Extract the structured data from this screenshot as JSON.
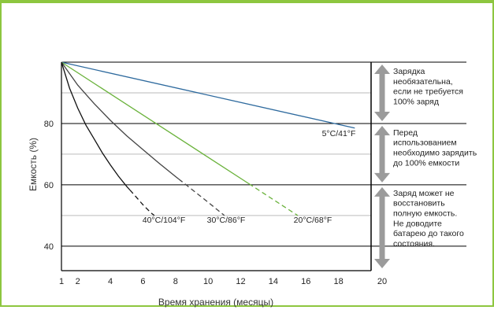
{
  "chart_data": {
    "type": "line",
    "xlabel": "Время хранения (месяцы)",
    "ylabel": "Емкость (%)",
    "xlim": [
      1,
      20
    ],
    "ylim": [
      32,
      100
    ],
    "x_ticks": [
      1,
      2,
      4,
      6,
      8,
      10,
      12,
      14,
      16,
      18,
      20
    ],
    "y_ticks": [
      40,
      60,
      80
    ],
    "grid_y": [
      40,
      50,
      60,
      70,
      80,
      90,
      100
    ],
    "colors": {
      "frame": "#8dc63f",
      "grid": "#c8c8c8",
      "arrow": "#9b9b9b",
      "axis": "#000000"
    },
    "series": [
      {
        "name": "5°C/41°F",
        "color": "#2e6a9e",
        "dashed_from_x": null,
        "points": [
          [
            1,
            100
          ],
          [
            19,
            78.5
          ]
        ]
      },
      {
        "name": "20°C/68°F",
        "color": "#6ab23b",
        "dashed_from_x": 12.5,
        "points": [
          [
            1,
            100
          ],
          [
            15.5,
            50
          ]
        ]
      },
      {
        "name": "30°C/86°F",
        "color": "#444444",
        "dashed_from_x": 8.2,
        "points": [
          [
            1,
            100
          ],
          [
            2,
            92.5
          ],
          [
            3,
            86.5
          ],
          [
            4,
            81
          ],
          [
            5,
            76
          ],
          [
            6,
            71.5
          ],
          [
            7,
            67
          ],
          [
            8,
            62.7
          ],
          [
            9,
            58.5
          ],
          [
            10,
            54.3
          ],
          [
            11,
            50
          ]
        ]
      },
      {
        "name": "40°C/104°F",
        "color": "#111111",
        "dashed_from_x": 5.2,
        "points": [
          [
            1,
            100
          ],
          [
            1.5,
            91.5
          ],
          [
            2,
            85
          ],
          [
            2.5,
            79.5
          ],
          [
            3,
            75
          ],
          [
            3.5,
            70.5
          ],
          [
            4,
            66.5
          ],
          [
            4.5,
            62.8
          ],
          [
            5,
            59.5
          ],
          [
            5.5,
            56.5
          ],
          [
            6,
            53.5
          ],
          [
            6.5,
            50.8
          ],
          [
            6.7,
            50
          ]
        ]
      }
    ],
    "zones": [
      {
        "range": [
          80,
          100
        ],
        "text": [
          "Зарядка",
          "необязательна,",
          "если не требуется",
          "100% заряд"
        ]
      },
      {
        "range": [
          60,
          80
        ],
        "text": [
          "Перед",
          "использованием",
          "необходимо зарядить",
          "до 100% емкости"
        ]
      },
      {
        "range": [
          32,
          60
        ],
        "text": [
          "Заряд может не",
          "восстановить",
          "полную емкость.",
          "Не доводите",
          "батарею до такого",
          "состояния."
        ]
      }
    ]
  }
}
